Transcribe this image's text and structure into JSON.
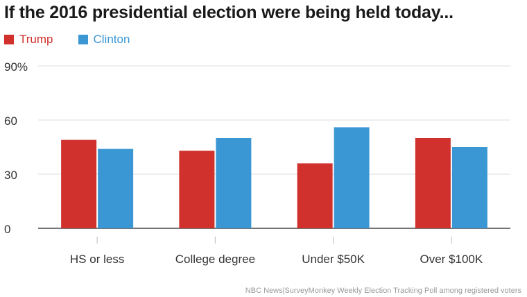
{
  "chart_data": {
    "type": "bar",
    "title": "If the 2016 presidential election were being held today...",
    "categories": [
      "HS or less",
      "College degree",
      "Under $50K",
      "Over $100K"
    ],
    "series": [
      {
        "name": "Trump",
        "color": "#d0312d",
        "values": [
          49,
          43,
          36,
          50
        ]
      },
      {
        "name": "Clinton",
        "color": "#3b97d3",
        "values": [
          44,
          50,
          56,
          45
        ]
      }
    ],
    "ylim": [
      0,
      90
    ],
    "yticks": [
      "0",
      "30",
      "60",
      "90%"
    ],
    "xlabel": "",
    "ylabel": "",
    "grid": true,
    "legend": "top-left"
  },
  "source": "NBC News|SurveyMonkey Weekly Election Tracking Poll among registered voters"
}
